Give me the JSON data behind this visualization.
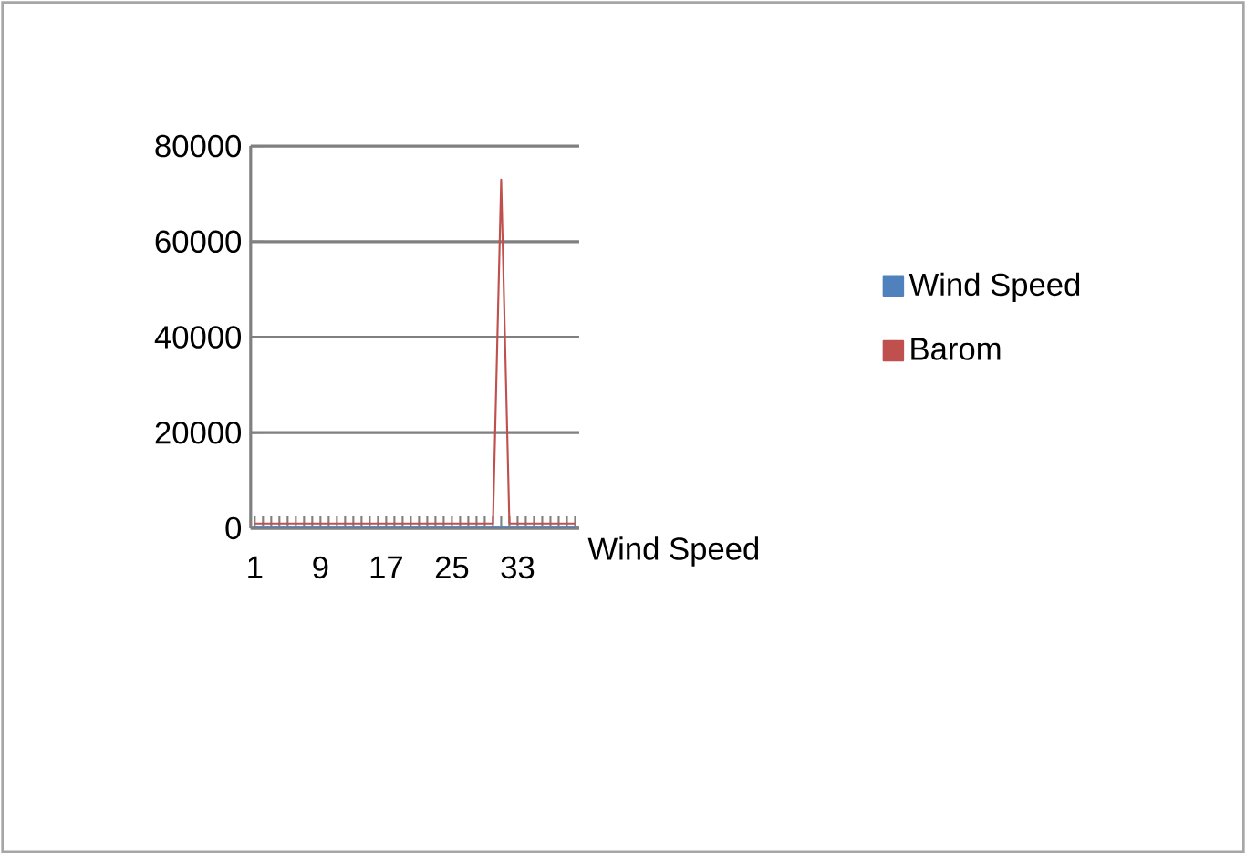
{
  "chart_data": {
    "type": "line",
    "xlabel": "Wind Speed",
    "categories": [
      "1",
      null,
      null,
      null,
      null,
      null,
      null,
      null,
      "9",
      null,
      null,
      null,
      null,
      null,
      null,
      null,
      "17",
      null,
      null,
      null,
      null,
      null,
      null,
      null,
      "25",
      null,
      null,
      null,
      null,
      null,
      null,
      null,
      "33",
      null,
      null,
      null,
      null,
      null,
      null,
      null
    ],
    "series": [
      {
        "name": "Wind Speed",
        "color": "#4f81bd",
        "values": [
          0,
          0,
          0,
          0,
          0,
          0,
          0,
          0,
          0,
          0,
          0,
          0,
          0,
          0,
          0,
          0,
          0,
          0,
          0,
          0,
          0,
          0,
          0,
          0,
          0,
          0,
          0,
          0,
          0,
          0,
          0,
          0,
          0,
          0,
          0,
          0,
          0,
          0,
          0,
          0
        ]
      },
      {
        "name": "Barom",
        "color": "#c0504d",
        "values": [
          1000,
          1000,
          1000,
          1000,
          1000,
          1000,
          1000,
          1000,
          1000,
          1000,
          1000,
          1000,
          1000,
          1000,
          1000,
          1000,
          1000,
          1000,
          1000,
          1000,
          1000,
          1000,
          1000,
          1000,
          1000,
          1000,
          1000,
          1000,
          1000,
          1000,
          73000,
          1000,
          1000,
          1000,
          1000,
          1000,
          1000,
          1000,
          1000,
          1000
        ]
      }
    ],
    "ylim": [
      0,
      80000
    ],
    "yticks": [
      0,
      20000,
      40000,
      60000,
      80000
    ],
    "grid": "y",
    "legend": "right",
    "marker": "none"
  }
}
